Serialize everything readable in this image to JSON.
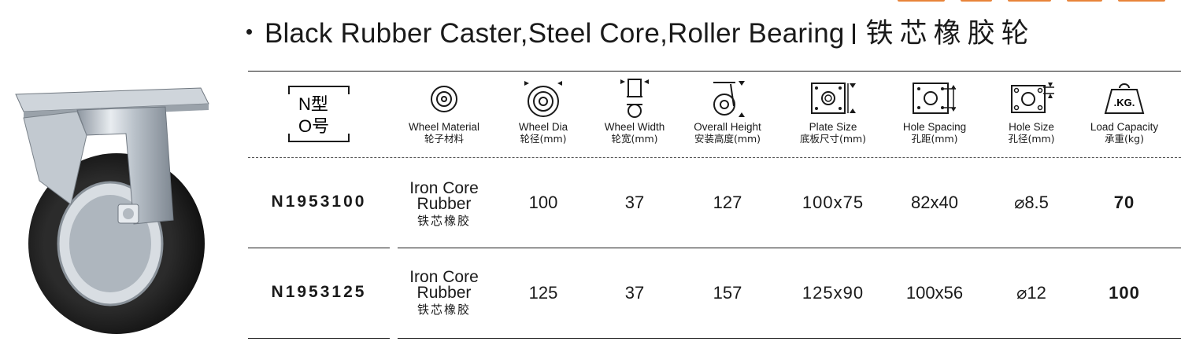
{
  "title": {
    "en": "Black Rubber Caster,Steel Core,Roller Bearing",
    "zh": "铁芯橡胶轮"
  },
  "colors": {
    "accent_top": "#e8843a",
    "text": "#1a1a1a"
  },
  "header": {
    "model_icon": {
      "top": "N型",
      "bottom": "O号"
    },
    "columns": [
      {
        "icon": "wheel-front-icon",
        "en": "Wheel Material",
        "zh": "轮子材料"
      },
      {
        "icon": "wheel-diameter-icon",
        "en": "Wheel Dia",
        "zh": "轮径(mm)"
      },
      {
        "icon": "wheel-width-icon",
        "en": "Wheel Width",
        "zh": "轮宽(mm)"
      },
      {
        "icon": "overall-height-icon",
        "en": "Overall Height",
        "zh": "安装高度(mm)"
      },
      {
        "icon": "plate-size-icon",
        "en": "Plate Size",
        "zh": "底板尺寸(mm)"
      },
      {
        "icon": "hole-spacing-icon",
        "en": "Hole Spacing",
        "zh": "孔距(mm)"
      },
      {
        "icon": "hole-size-icon",
        "en": "Hole Size",
        "zh": "孔径(mm)"
      },
      {
        "icon": "weight-icon",
        "en": "Load Capacity",
        "zh": "承重(kg)",
        "icon_text": ".KG."
      }
    ]
  },
  "rows": [
    {
      "model": "N1953100",
      "material": {
        "line1": "Iron Core",
        "line2": "Rubber",
        "zh": "铁芯橡胶"
      },
      "wheel_dia": "100",
      "wheel_width": "37",
      "overall_height": "127",
      "plate_size": "100x75",
      "hole_spacing": "82x40",
      "hole_size": "⌀8.5",
      "load": "70"
    },
    {
      "model": "N1953125",
      "material": {
        "line1": "Iron Core",
        "line2": "Rubber",
        "zh": "铁芯橡胶"
      },
      "wheel_dia": "125",
      "wheel_width": "37",
      "overall_height": "157",
      "plate_size": "125x90",
      "hole_spacing": "100x56",
      "hole_size": "⌀12",
      "load": "100"
    }
  ]
}
